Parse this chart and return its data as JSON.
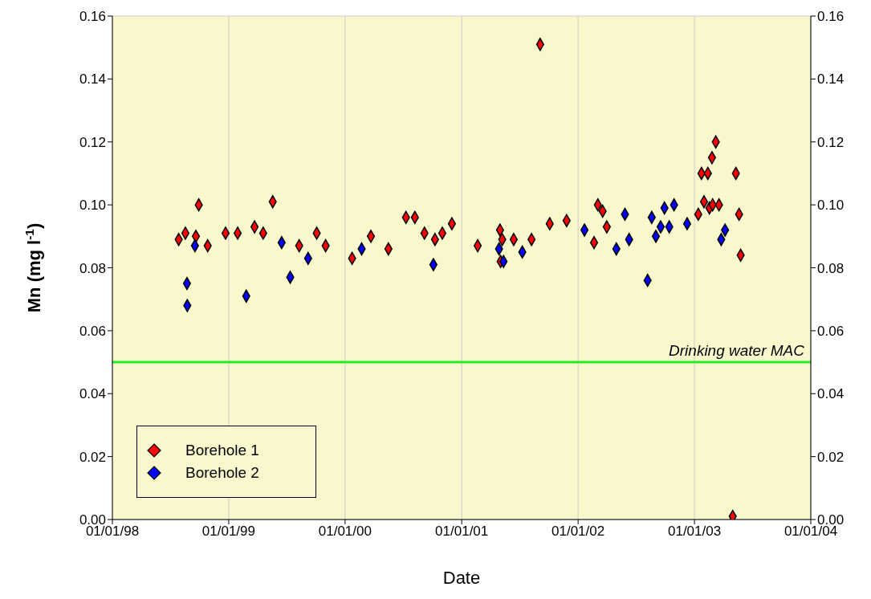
{
  "chart_data": {
    "type": "scatter",
    "xlabel": "Date",
    "ylabel": "Mn (mg l$^{-1}$)",
    "xlim": [
      "1998-01-01",
      "2004-01-01"
    ],
    "xticks": [
      {
        "value": "1998-01-01",
        "label": "01/01/98"
      },
      {
        "value": "1999-01-01",
        "label": "01/01/99"
      },
      {
        "value": "2000-01-01",
        "label": "01/01/00"
      },
      {
        "value": "2001-01-01",
        "label": "01/01/01"
      },
      {
        "value": "2002-01-01",
        "label": "01/01/02"
      },
      {
        "value": "2003-01-01",
        "label": "01/01/03"
      },
      {
        "value": "2004-01-01",
        "label": "01/01/04"
      }
    ],
    "ylim": [
      0,
      0.16
    ],
    "yticks": [
      {
        "value": 0,
        "label": "0.00"
      },
      0.02,
      0.04,
      0.06,
      0.08,
      {
        "value": 0.1,
        "label": "0.10"
      },
      0.12,
      0.14,
      0.16
    ],
    "y2lim": [
      0,
      0.16
    ],
    "y2ticks": [
      {
        "value": 0,
        "label": "0.00"
      },
      0.02,
      0.04,
      0.06,
      0.08,
      {
        "value": 0.1,
        "label": "0.10"
      },
      0.12,
      0.14,
      0.16
    ],
    "grid": true,
    "legend": "bottom left",
    "marker": "diamond",
    "ref_lines": [
      {
        "axis": "y",
        "value": 0.05,
        "label": "Drinking water MAC",
        "color": "#22ee22"
      }
    ],
    "series": [
      {
        "name": "Borehole 1",
        "color": "#ff0000",
        "x": [
          "1998-07-28",
          "1998-08-18",
          "1998-09-17",
          "1998-09-20",
          "1998-09-29",
          "1998-10-27",
          "1998-12-22",
          "1999-01-29",
          "1999-03-23",
          "1999-04-19",
          "1999-05-19",
          "1999-08-10",
          "1999-10-04",
          "1999-11-01",
          "2000-01-23",
          "2000-03-22",
          "2000-05-16",
          "2000-07-10",
          "2000-08-07",
          "2000-09-06",
          "2000-10-09",
          "2000-11-01",
          "2000-12-01",
          "2001-02-20",
          "2001-05-01",
          "2001-05-03",
          "2001-05-08",
          "2001-06-13",
          "2001-08-08",
          "2001-09-04",
          "2001-10-04",
          "2001-11-26",
          "2002-02-20",
          "2002-03-04",
          "2002-03-19",
          "2002-04-01",
          "2003-01-13",
          "2003-01-23",
          "2003-01-31",
          "2003-02-05",
          "2003-02-12",
          "2003-02-17",
          "2003-02-25",
          "2003-02-27",
          "2003-03-09",
          "2003-03-19",
          "2003-05-01",
          "2003-05-11",
          "2003-05-21",
          "2003-05-26"
        ],
        "values": [
          0.089,
          0.091,
          null,
          0.09,
          0.1,
          0.087,
          0.091,
          0.091,
          0.093,
          0.091,
          0.101,
          0.087,
          0.091,
          0.087,
          0.083,
          0.09,
          0.086,
          0.096,
          0.096,
          0.091,
          0.089,
          0.091,
          0.094,
          0.087,
          0.092,
          0.082,
          0.089,
          0.089,
          0.089,
          0.151,
          0.094,
          0.095,
          0.088,
          0.1,
          0.098,
          0.093,
          0.097,
          0.11,
          0.101,
          null,
          0.11,
          0.099,
          0.115,
          0.1,
          0.12,
          0.1,
          0.001,
          0.11,
          0.097,
          0.084
        ]
      },
      {
        "name": "Borehole 2",
        "color": "#0000ff",
        "x": [
          "1998-08-23",
          "1998-08-24",
          "1998-09-17",
          "1999-02-25",
          "1999-06-16",
          "1999-07-13",
          "1999-09-07",
          "2000-02-22",
          "2000-10-04",
          "2001-04-28",
          "2001-05-12",
          "2001-07-10",
          "2002-01-21",
          "2002-05-01",
          "2002-05-28",
          "2002-06-10",
          "2002-08-07",
          "2002-08-20",
          "2002-09-02",
          "2002-09-17",
          "2002-09-29",
          "2002-10-14",
          "2002-10-29",
          "2002-12-09",
          "2003-03-26",
          "2003-04-07"
        ],
        "values": [
          0.075,
          0.068,
          0.087,
          0.071,
          0.088,
          0.077,
          0.083,
          0.086,
          0.081,
          0.086,
          0.082,
          0.085,
          0.092,
          0.086,
          0.097,
          0.089,
          0.076,
          0.096,
          0.09,
          0.093,
          0.099,
          0.093,
          0.1,
          0.094,
          0.089,
          0.092
        ]
      }
    ]
  }
}
